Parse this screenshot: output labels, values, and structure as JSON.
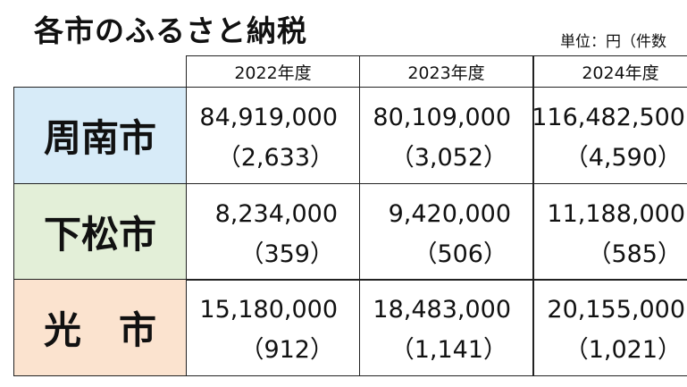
{
  "header": {
    "title": "各市のふるさと納税",
    "unit": "単位：円（件数"
  },
  "table": {
    "columns": [
      "2022年度",
      "2023年度",
      "2024年度"
    ],
    "rows": [
      {
        "name": "周南市",
        "cells": [
          [
            "84,919,000",
            "（2,633）"
          ],
          [
            "80,109,000",
            "（3,052）"
          ],
          [
            "116,482,500",
            "（4,590）"
          ]
        ]
      },
      {
        "name": "下松市",
        "cells": [
          [
            "8,234,000",
            "（359）"
          ],
          [
            "9,420,000",
            "（506）"
          ],
          [
            "11,188,000",
            "（585）"
          ]
        ]
      },
      {
        "name": "光　市",
        "cells": [
          [
            "15,180,000",
            "（912）"
          ],
          [
            "18,483,000",
            "（1,141）"
          ],
          [
            "20,155,000",
            "（1,021）"
          ]
        ]
      }
    ]
  }
}
